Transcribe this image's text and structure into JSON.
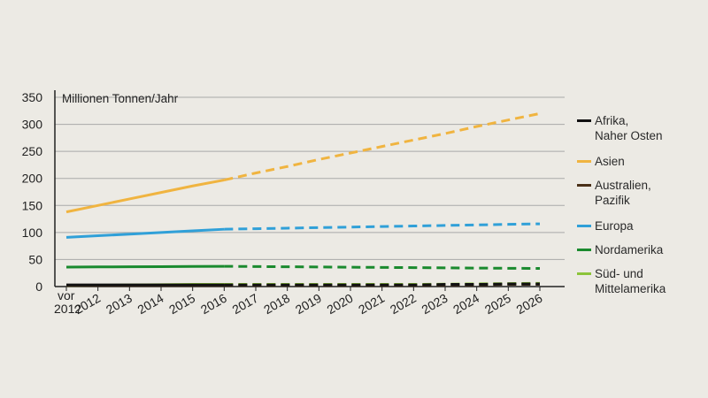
{
  "chart_data": {
    "type": "line",
    "ylabel": "Millionen Tonnen/Jahr",
    "ylim": [
      0,
      350
    ],
    "yticks": [
      0,
      50,
      100,
      150,
      200,
      250,
      300,
      350
    ],
    "categories": [
      "vor\n2012",
      "2012",
      "2013",
      "2014",
      "2015",
      "2016",
      "2017",
      "2018",
      "2019",
      "2020",
      "2021",
      "2022",
      "2023",
      "2024",
      "2025",
      "2026"
    ],
    "projection_start": "2016",
    "grid": true,
    "legend_position": "right",
    "series": [
      {
        "name": "Afrika,\nNaher Osten",
        "color": "#111111",
        "values": [
          3,
          3,
          3,
          3,
          3,
          3,
          3,
          3,
          3,
          3,
          3,
          3,
          4,
          4,
          5,
          5
        ]
      },
      {
        "name": "Asien",
        "color": "#f0b440",
        "values": [
          138,
          150,
          162,
          174,
          186,
          197,
          210,
          222,
          235,
          247,
          259,
          271,
          283,
          296,
          308,
          320
        ]
      },
      {
        "name": "Australien,\nPazifik",
        "color": "#4a3018",
        "values": [
          2,
          2,
          2,
          2,
          2,
          2,
          2,
          2,
          2,
          2,
          2,
          2,
          3,
          3,
          4,
          4
        ]
      },
      {
        "name": "Europa",
        "color": "#30a0d8",
        "values": [
          91,
          94,
          97,
          100,
          103,
          106,
          107,
          108,
          109,
          110,
          111,
          112,
          113,
          114,
          115,
          116
        ]
      },
      {
        "name": "Nordamerika",
        "color": "#1a8a2e",
        "values": [
          36,
          36.3,
          36.6,
          36.9,
          37.2,
          37.5,
          37,
          36.6,
          36.2,
          35.8,
          35.4,
          35,
          34.6,
          34.2,
          33.8,
          33.5
        ]
      },
      {
        "name": "Süd- und\nMittelamerika",
        "color": "#8cc43a",
        "values": [
          2,
          2.5,
          3,
          3.5,
          4,
          4,
          4,
          4,
          4,
          4,
          4,
          4,
          4.5,
          5,
          5.5,
          6
        ]
      }
    ]
  }
}
